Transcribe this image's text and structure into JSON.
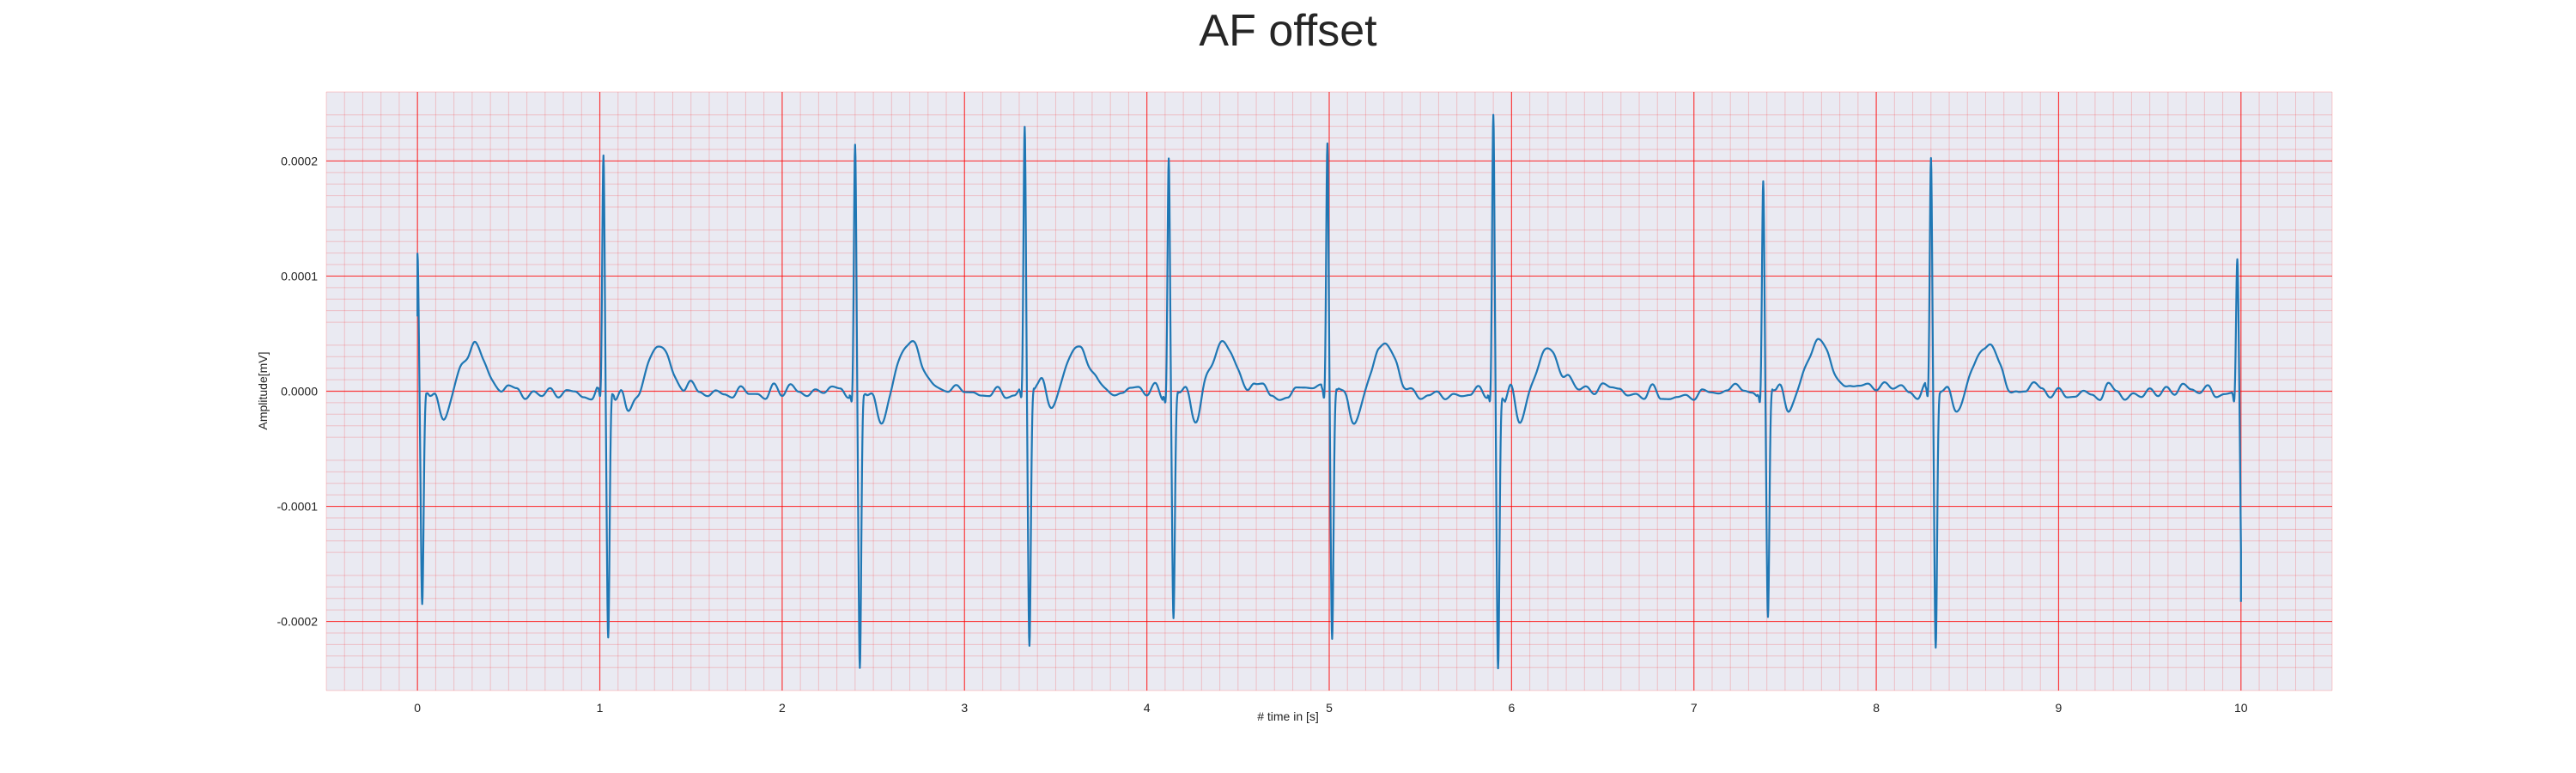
{
  "chart_data": {
    "type": "line",
    "title": "AF offset",
    "xlabel": "# time in [s]",
    "ylabel": "Amplitude[mV]",
    "xlim": [
      -0.5,
      10.5
    ],
    "ylim": [
      -0.00026,
      0.00026
    ],
    "xticks": [
      0,
      1,
      2,
      3,
      4,
      5,
      6,
      7,
      8,
      9,
      10
    ],
    "xtick_labels": [
      "0",
      "1",
      "2",
      "3",
      "4",
      "5",
      "6",
      "7",
      "8",
      "9",
      "10"
    ],
    "yticks": [
      0.0002,
      0.0001,
      0.0,
      -0.0001,
      -0.0002
    ],
    "ytick_labels": [
      "0.0002",
      "0.0001",
      "0.0000",
      "-0.0001",
      "-0.0002"
    ],
    "grid": true,
    "grid_color": "#ff0000",
    "background_color": "#eaeaf2",
    "line_color": "#1f77b4",
    "series": [
      {
        "beats": [
          {
            "t": 0.0,
            "r": 0.00012,
            "s": -0.000185
          },
          {
            "t": 1.02,
            "r": 0.000205,
            "s": -0.000215
          },
          {
            "t": 2.4,
            "r": 0.000215,
            "s": -0.00024
          },
          {
            "t": 3.33,
            "r": 0.00023,
            "s": -0.000222
          },
          {
            "t": 4.12,
            "r": 0.000203,
            "s": -0.000197
          },
          {
            "t": 4.99,
            "r": 0.000216,
            "s": -0.000215
          },
          {
            "t": 5.9,
            "r": 0.000241,
            "s": -0.00024
          },
          {
            "t": 7.38,
            "r": 0.000183,
            "s": -0.000197
          },
          {
            "t": 8.3,
            "r": 0.000203,
            "s": -0.000223
          },
          {
            "t": 9.98,
            "r": 0.000115,
            "s": -0.000193
          }
        ],
        "start": {
          "t": 0.0,
          "y": 6.5e-05
        },
        "end": {
          "t": 10.0,
          "y": -0.000183
        }
      }
    ]
  }
}
